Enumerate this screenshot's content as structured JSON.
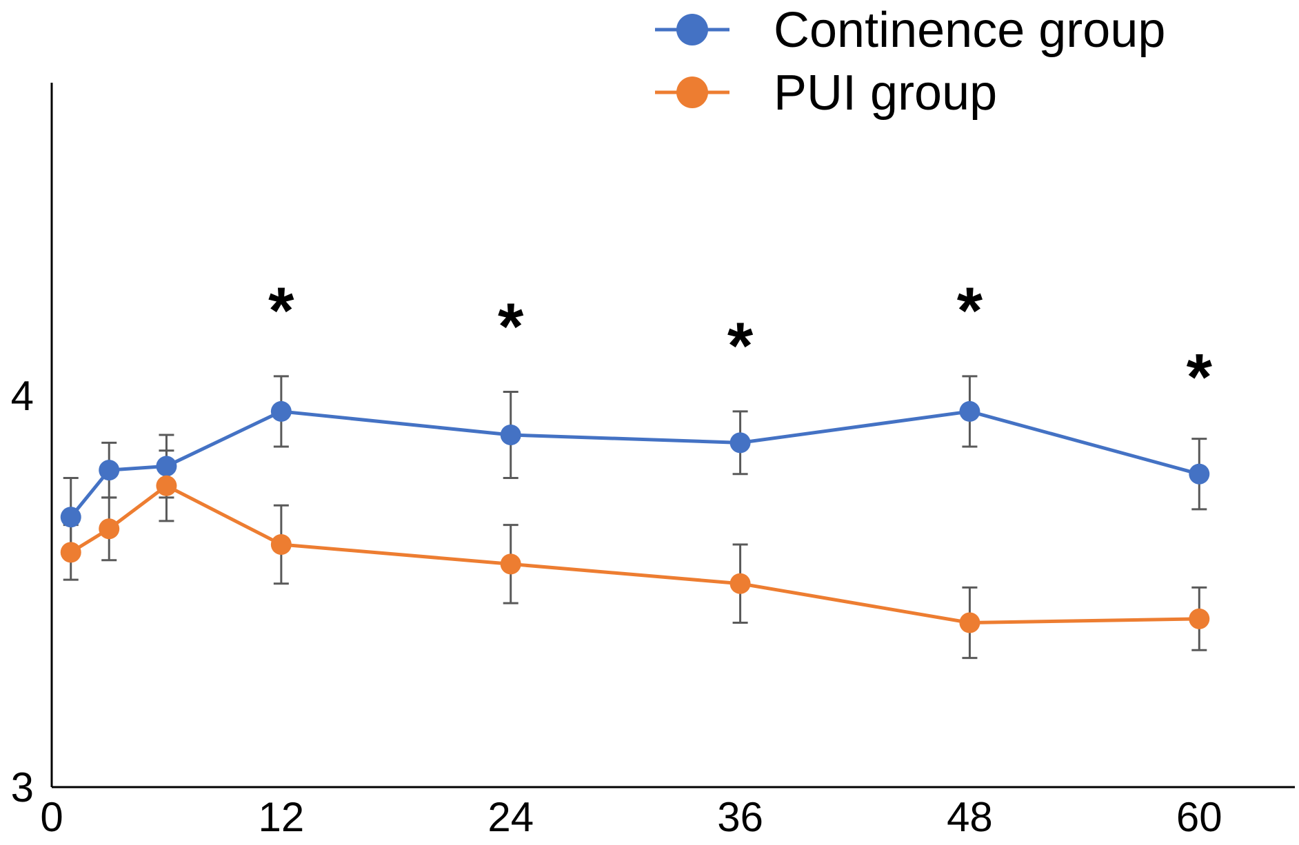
{
  "chart_data": {
    "type": "line",
    "title": "",
    "xlabel": "",
    "ylabel": "",
    "xlim": [
      0,
      65
    ],
    "ylim": [
      3,
      4.8
    ],
    "x_ticks": [
      0,
      12,
      24,
      36,
      48,
      60
    ],
    "y_ticks": [
      3,
      4
    ],
    "legend_position": "top-right",
    "error_bar_color": "#595959",
    "axis_color": "#000000",
    "series": [
      {
        "name": "Continence group",
        "color": "#4472C4",
        "x": [
          1,
          3,
          6,
          12,
          24,
          36,
          48,
          60
        ],
        "y": [
          3.69,
          3.81,
          3.82,
          3.96,
          3.9,
          3.88,
          3.96,
          3.8
        ],
        "err": [
          0.1,
          0.07,
          0.08,
          0.09,
          0.11,
          0.08,
          0.09,
          0.09
        ]
      },
      {
        "name": "PUI group",
        "color": "#ED7D31",
        "x": [
          1,
          3,
          6,
          12,
          24,
          36,
          48,
          60
        ],
        "y": [
          3.6,
          3.66,
          3.77,
          3.62,
          3.57,
          3.52,
          3.42,
          3.43
        ],
        "err": [
          0.07,
          0.08,
          0.09,
          0.1,
          0.1,
          0.1,
          0.09,
          0.08
        ]
      }
    ],
    "annotations": [
      {
        "x": 12,
        "y": 4.23,
        "text": "*"
      },
      {
        "x": 24,
        "y": 4.19,
        "text": "*"
      },
      {
        "x": 36,
        "y": 4.14,
        "text": "*"
      },
      {
        "x": 48,
        "y": 4.23,
        "text": "*"
      },
      {
        "x": 60,
        "y": 4.06,
        "text": "*"
      }
    ]
  }
}
